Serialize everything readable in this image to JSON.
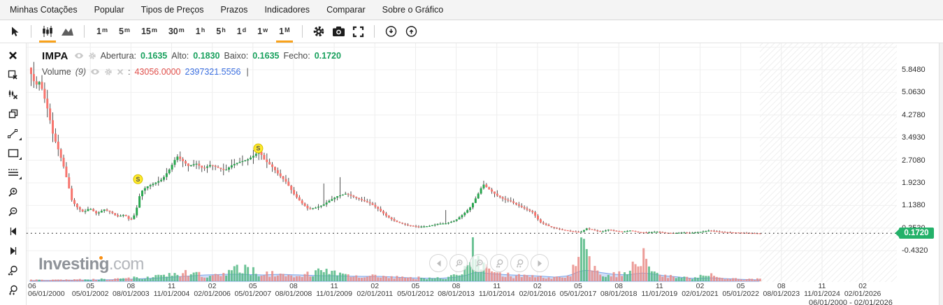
{
  "menu": {
    "items": [
      "Minhas Cotações",
      "Popular",
      "Tipos de Preços",
      "Prazos",
      "Indicadores",
      "Comparar",
      "Sobre o Gráfico"
    ]
  },
  "toolbar": {
    "icon_buttons": [
      "cursor",
      "candlestick-chart",
      "area-chart",
      "settings",
      "screenshot",
      "fullscreen",
      "save-chart",
      "load-chart"
    ],
    "selected_chart_type": "candlestick-chart",
    "timeframes": [
      {
        "n": "1",
        "u": "m"
      },
      {
        "n": "5",
        "u": "m"
      },
      {
        "n": "15",
        "u": "m"
      },
      {
        "n": "30",
        "u": "m"
      },
      {
        "n": "1",
        "u": "h"
      },
      {
        "n": "5",
        "u": "h"
      },
      {
        "n": "1",
        "u": "d"
      },
      {
        "n": "1",
        "u": "w"
      },
      {
        "n": "1",
        "u": "M"
      }
    ],
    "selected_timeframe": "1M",
    "accent_color": "#f9a21b"
  },
  "sidebar": {
    "tools": [
      "close",
      "clear-drawings",
      "remove-indicators",
      "duplicate",
      "trend-line",
      "rectangle",
      "horizontal-lines",
      "zoom-in",
      "zoom-out",
      "pan-left",
      "pan-right",
      "zoom-x",
      "zoom-fit"
    ]
  },
  "legend": {
    "symbol": "IMPA",
    "abertura_label": "Abertura:",
    "abertura": "0.1635",
    "alto_label": "Alto:",
    "alto": "0.1830",
    "baixo_label": "Baixo:",
    "baixo": "0.1635",
    "fecho_label": "Fecho:",
    "fecho": "0.1720",
    "volume_label": "Volume",
    "volume_param": "(9)",
    "volume_colon": ":",
    "volume_value": "43056.0000",
    "volume_ma_value": "2397321.5556",
    "caret": "|"
  },
  "watermark": {
    "brand": "Investing",
    "tld": ".com"
  },
  "nav": {
    "buttons": [
      "pan-left",
      "zoom-in",
      "zoom-out",
      "zoom-x",
      "zoom-fit",
      "pan-right"
    ]
  },
  "price_badge": "0.1720",
  "visible_range": "06/01/2000 - 02/01/2026",
  "chart_data": {
    "type": "candlestick",
    "symbol": "IMPA",
    "interval": "1M",
    "ohlc": {
      "open": 0.1635,
      "high": 0.183,
      "low": 0.1635,
      "close": 0.172
    },
    "volume": 43056.0,
    "volume_ma": 2397321.5556,
    "last_price": 0.172,
    "price_line": 0.172,
    "y_tick_labels": [
      "5.8480",
      "5.0630",
      "4.2780",
      "3.4930",
      "2.7080",
      "1.9230",
      "1.1380",
      "0.3530",
      "-0.4320"
    ],
    "x_ticks": [
      {
        "m": "06",
        "d": "06/01/2000"
      },
      {
        "m": "05",
        "d": "05/01/2002"
      },
      {
        "m": "08",
        "d": "08/01/2003"
      },
      {
        "m": "11",
        "d": "11/01/2004"
      },
      {
        "m": "02",
        "d": "02/01/2006"
      },
      {
        "m": "05",
        "d": "05/01/2007"
      },
      {
        "m": "08",
        "d": "08/01/2008"
      },
      {
        "m": "11",
        "d": "11/01/2009"
      },
      {
        "m": "02",
        "d": "02/01/2011"
      },
      {
        "m": "05",
        "d": "05/01/2012"
      },
      {
        "m": "08",
        "d": "08/01/2013"
      },
      {
        "m": "11",
        "d": "11/01/2014"
      },
      {
        "m": "02",
        "d": "02/01/2016"
      },
      {
        "m": "05",
        "d": "05/01/2017"
      },
      {
        "m": "08",
        "d": "08/01/2018"
      },
      {
        "m": "11",
        "d": "11/01/2019"
      },
      {
        "m": "02",
        "d": "02/01/2021"
      },
      {
        "m": "05",
        "d": "05/01/2022"
      },
      {
        "m": "08",
        "d": "08/01/2023"
      },
      {
        "m": "11",
        "d": "11/01/2024"
      },
      {
        "m": "02",
        "d": "02/01/2026"
      }
    ],
    "markers": [
      {
        "label": "S",
        "t": 0.148,
        "price": 2.05
      },
      {
        "label": "S",
        "t": 0.313,
        "price": 3.12
      }
    ],
    "close_anchors": [
      [
        0,
        5.7
      ],
      [
        0.006,
        5.3
      ],
      [
        0.012,
        5.45
      ],
      [
        0.018,
        4.9
      ],
      [
        0.024,
        4.35
      ],
      [
        0.03,
        3.6
      ],
      [
        0.037,
        3.1
      ],
      [
        0.044,
        2.55
      ],
      [
        0.05,
        1.95
      ],
      [
        0.056,
        1.3
      ],
      [
        0.064,
        1.05
      ],
      [
        0.072,
        0.9
      ],
      [
        0.08,
        1.05
      ],
      [
        0.09,
        0.85
      ],
      [
        0.1,
        1.0
      ],
      [
        0.11,
        0.9
      ],
      [
        0.118,
        0.75
      ],
      [
        0.128,
        0.82
      ],
      [
        0.136,
        0.62
      ],
      [
        0.143,
        0.85
      ],
      [
        0.15,
        1.6
      ],
      [
        0.158,
        1.78
      ],
      [
        0.17,
        1.92
      ],
      [
        0.18,
        2.05
      ],
      [
        0.19,
        2.4
      ],
      [
        0.2,
        2.85
      ],
      [
        0.208,
        2.68
      ],
      [
        0.216,
        2.5
      ],
      [
        0.226,
        2.6
      ],
      [
        0.236,
        2.42
      ],
      [
        0.246,
        2.55
      ],
      [
        0.256,
        2.45
      ],
      [
        0.266,
        2.35
      ],
      [
        0.276,
        2.55
      ],
      [
        0.286,
        2.65
      ],
      [
        0.296,
        2.72
      ],
      [
        0.306,
        2.88
      ],
      [
        0.313,
        3.02
      ],
      [
        0.32,
        2.72
      ],
      [
        0.33,
        2.5
      ],
      [
        0.34,
        2.2
      ],
      [
        0.35,
        1.95
      ],
      [
        0.36,
        1.55
      ],
      [
        0.37,
        1.25
      ],
      [
        0.38,
        1.02
      ],
      [
        0.39,
        1.06
      ],
      [
        0.4,
        1.15
      ],
      [
        0.41,
        1.32
      ],
      [
        0.42,
        1.46
      ],
      [
        0.432,
        1.55
      ],
      [
        0.444,
        1.42
      ],
      [
        0.456,
        1.3
      ],
      [
        0.466,
        1.2
      ],
      [
        0.476,
        1.02
      ],
      [
        0.488,
        0.76
      ],
      [
        0.5,
        0.58
      ],
      [
        0.515,
        0.46
      ],
      [
        0.53,
        0.4
      ],
      [
        0.545,
        0.42
      ],
      [
        0.558,
        0.5
      ],
      [
        0.57,
        0.52
      ],
      [
        0.582,
        0.62
      ],
      [
        0.592,
        0.82
      ],
      [
        0.602,
        1.06
      ],
      [
        0.612,
        1.48
      ],
      [
        0.62,
        1.88
      ],
      [
        0.628,
        1.7
      ],
      [
        0.638,
        1.5
      ],
      [
        0.648,
        1.36
      ],
      [
        0.658,
        1.28
      ],
      [
        0.668,
        1.14
      ],
      [
        0.678,
        1.02
      ],
      [
        0.688,
        0.9
      ],
      [
        0.698,
        0.56
      ],
      [
        0.71,
        0.42
      ],
      [
        0.722,
        0.33
      ],
      [
        0.734,
        0.27
      ],
      [
        0.746,
        0.23
      ],
      [
        0.754,
        0.22
      ],
      [
        0.762,
        0.34
      ],
      [
        0.772,
        0.28
      ],
      [
        0.782,
        0.22
      ],
      [
        0.792,
        0.3
      ],
      [
        0.802,
        0.25
      ],
      [
        0.812,
        0.23
      ],
      [
        0.822,
        0.27
      ],
      [
        0.834,
        0.21
      ],
      [
        0.846,
        0.2
      ],
      [
        0.858,
        0.23
      ],
      [
        0.87,
        0.19
      ],
      [
        0.882,
        0.18
      ],
      [
        0.894,
        0.2
      ],
      [
        0.906,
        0.19
      ],
      [
        0.918,
        0.22
      ],
      [
        0.93,
        0.27
      ],
      [
        0.94,
        0.24
      ],
      [
        0.952,
        0.21
      ],
      [
        0.964,
        0.2
      ],
      [
        0.976,
        0.19
      ],
      [
        0.988,
        0.18
      ],
      [
        1,
        0.172
      ]
    ],
    "wick_events": [
      {
        "t": 0.4,
        "high": 1.9
      },
      {
        "t": 0.424,
        "high": 2.12
      },
      {
        "t": 0.57,
        "high": 0.98
      },
      {
        "t": 0.62,
        "high": 2.0
      }
    ],
    "volume_anchors": [
      [
        0,
        2,
        1
      ],
      [
        0.05,
        2,
        1.5
      ],
      [
        0.1,
        3,
        2
      ],
      [
        0.14,
        5,
        3
      ],
      [
        0.18,
        7,
        5
      ],
      [
        0.21,
        12,
        7
      ],
      [
        0.24,
        8,
        9
      ],
      [
        0.27,
        14,
        10
      ],
      [
        0.29,
        18,
        10
      ],
      [
        0.32,
        10,
        9
      ],
      [
        0.34,
        12,
        10
      ],
      [
        0.37,
        8,
        9
      ],
      [
        0.4,
        14,
        8
      ],
      [
        0.42,
        12,
        8
      ],
      [
        0.45,
        8,
        7
      ],
      [
        0.48,
        6,
        7
      ],
      [
        0.52,
        5,
        5
      ],
      [
        0.56,
        4,
        4
      ],
      [
        0.585,
        8,
        6
      ],
      [
        0.6,
        22,
        9
      ],
      [
        0.607,
        63,
        12
      ],
      [
        0.615,
        26,
        13
      ],
      [
        0.63,
        12,
        11
      ],
      [
        0.66,
        8,
        9
      ],
      [
        0.69,
        6,
        8
      ],
      [
        0.72,
        5,
        6
      ],
      [
        0.74,
        8,
        8
      ],
      [
        0.755,
        48,
        15
      ],
      [
        0.765,
        30,
        16
      ],
      [
        0.78,
        12,
        13
      ],
      [
        0.8,
        10,
        10
      ],
      [
        0.82,
        12,
        9
      ],
      [
        0.838,
        38,
        12
      ],
      [
        0.85,
        15,
        11
      ],
      [
        0.87,
        8,
        8
      ],
      [
        0.89,
        5,
        6
      ],
      [
        0.91,
        4,
        4
      ],
      [
        0.935,
        12,
        5
      ],
      [
        0.95,
        5,
        4
      ],
      [
        0.97,
        3,
        3
      ],
      [
        1,
        3,
        2
      ]
    ],
    "colors": {
      "up": "#29a64f",
      "down": "#f7746d",
      "wick": "#3c3c3c",
      "volume_up": "#53b984",
      "volume_down": "#e98b86",
      "ma_fill": "#a9c4f2",
      "ma_line": "#7aa2e8",
      "badge": "#23b169",
      "marker": "#ffe92c",
      "marker_edge": "#d4c000",
      "grid": "#ededed",
      "dotted_line": "#4a4a4a",
      "hatch": "#ebebeb"
    },
    "axis": {
      "grid": true,
      "no_data_hatch_from_t": 1.0
    }
  }
}
